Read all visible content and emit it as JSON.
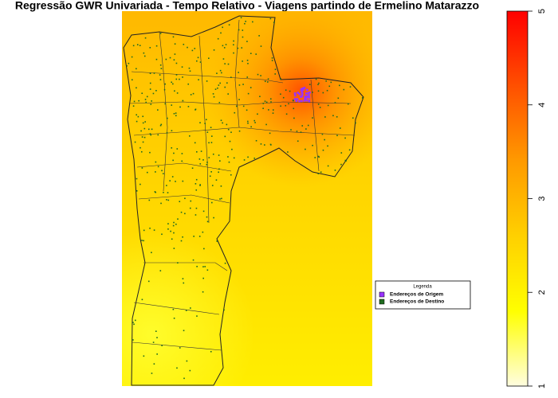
{
  "title": "Regressão GWR Univariada - Tempo Relativo - Viagens partindo de Ermelino Matarazzo",
  "colorbar": {
    "lim": [
      1,
      5
    ],
    "ticks": [
      1,
      2,
      3,
      4,
      5
    ],
    "colors": [
      "#fffde0",
      "#ffff00",
      "#ffd000",
      "#ff9a00",
      "#ff5000",
      "#ff0000"
    ]
  },
  "legend": {
    "title": "Legenda",
    "entries": [
      {
        "label": "Endereços de Origem",
        "color": "#9933ff"
      },
      {
        "label": "Endereços de Destino",
        "color": "#1f6b1f"
      }
    ]
  }
}
